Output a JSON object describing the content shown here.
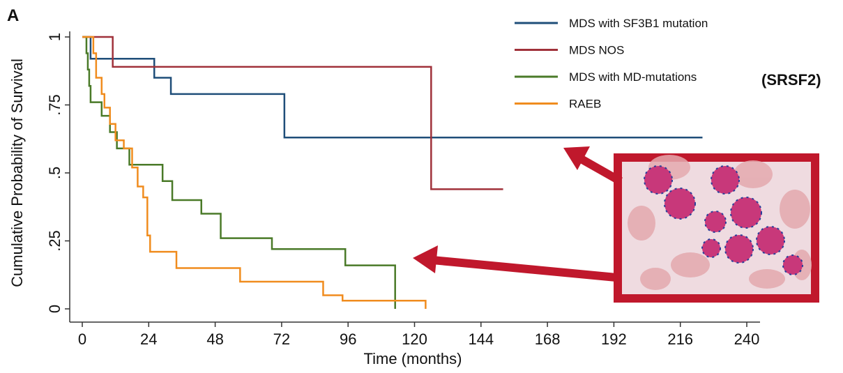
{
  "chart_data": {
    "type": "step",
    "panel_label": "A",
    "annotation": "(SRSF2)",
    "x_label": "Time (months)",
    "y_label": "Cumulative Probability of Survival",
    "xlim": [
      0,
      240
    ],
    "xticks": [
      0,
      24,
      48,
      72,
      96,
      120,
      144,
      168,
      192,
      216,
      240
    ],
    "ylim": [
      0,
      1
    ],
    "yticks": [
      0,
      {
        "value": 0.25,
        "label": ".25"
      },
      {
        "value": 0.5,
        "label": ".5"
      },
      {
        "value": 0.75,
        "label": ".75"
      },
      1
    ],
    "series": [
      {
        "name": "MDS with SF3B1 mutation",
        "color": "#1f4e79",
        "x": [
          0,
          3,
          26,
          32,
          73,
          224
        ],
        "values": [
          1,
          0.92,
          0.85,
          0.79,
          0.63,
          0.63
        ]
      },
      {
        "name": "MDS NOS",
        "color": "#a0313a",
        "x": [
          0,
          11,
          126,
          152
        ],
        "values": [
          1,
          0.89,
          0.44,
          0.44
        ]
      },
      {
        "name": "MDS with MD-mutations",
        "color": "#4a7a28",
        "x": [
          0,
          1.5,
          2,
          2.5,
          3,
          7,
          10,
          12.5,
          17,
          29,
          32.5,
          43,
          50,
          68.5,
          95,
          113
        ],
        "values": [
          1,
          0.94,
          0.88,
          0.82,
          0.76,
          0.71,
          0.65,
          0.59,
          0.53,
          0.47,
          0.4,
          0.35,
          0.26,
          0.22,
          0.16,
          0
        ]
      },
      {
        "name": "RAEB",
        "color": "#f08c1e",
        "x": [
          0,
          4,
          5,
          7,
          8,
          10,
          12,
          15,
          18,
          20,
          22,
          23.5,
          24.5,
          34,
          57,
          87,
          94,
          124
        ],
        "values": [
          1,
          0.94,
          0.85,
          0.79,
          0.74,
          0.68,
          0.62,
          0.59,
          0.52,
          0.45,
          0.41,
          0.27,
          0.21,
          0.15,
          0.1,
          0.05,
          0.03,
          0
        ]
      }
    ]
  }
}
